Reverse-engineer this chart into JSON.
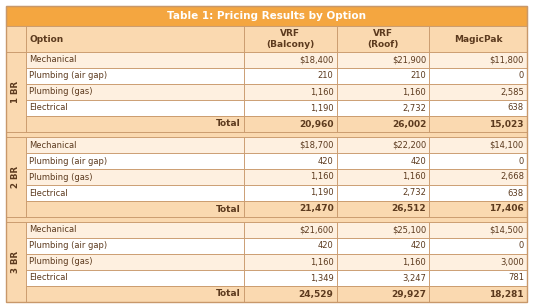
{
  "title": "Table 1: Pricing Results by Option",
  "col_headers": [
    "Option",
    "VRF\n(Balcony)",
    "VRF\n(Roof)",
    "MagicPak"
  ],
  "sections": [
    {
      "label": "1 BR",
      "rows": [
        [
          "Mechanical",
          "$18,400",
          "$21,900",
          "$11,800"
        ],
        [
          "Plumbing (air gap)",
          "210",
          "210",
          "0"
        ],
        [
          "Plumbing (gas)",
          "1,160",
          "1,160",
          "2,585"
        ],
        [
          "Electrical",
          "1,190",
          "2,732",
          "638"
        ]
      ],
      "total": [
        "20,960",
        "26,002",
        "15,023"
      ]
    },
    {
      "label": "2 BR",
      "rows": [
        [
          "Mechanical",
          "$18,700",
          "$22,200",
          "$14,100"
        ],
        [
          "Plumbing (air gap)",
          "420",
          "420",
          "0"
        ],
        [
          "Plumbing (gas)",
          "1,160",
          "1,160",
          "2,668"
        ],
        [
          "Electrical",
          "1,190",
          "2,732",
          "638"
        ]
      ],
      "total": [
        "21,470",
        "26,512",
        "17,406"
      ]
    },
    {
      "label": "3 BR",
      "rows": [
        [
          "Mechanical",
          "$21,600",
          "$25,100",
          "$14,500"
        ],
        [
          "Plumbing (air gap)",
          "420",
          "420",
          "0"
        ],
        [
          "Plumbing (gas)",
          "1,160",
          "1,160",
          "3,000"
        ],
        [
          "Electrical",
          "1,349",
          "3,247",
          "781"
        ]
      ],
      "total": [
        "24,529",
        "29,927",
        "18,281"
      ]
    }
  ],
  "title_bg": "#F4A640",
  "header_bg": "#FAD9B0",
  "row_bg_light": "#FEF0E0",
  "row_bg_white": "#FFFFFF",
  "total_bg": "#FAD9B0",
  "sep_bg": "#FAD9B0",
  "border_color": "#C8986A",
  "title_text_color": "#FFFFFF",
  "header_text_color": "#5C3A1E",
  "cell_text_color": "#5C3A1E",
  "total_text_color": "#5C3A1E",
  "label_text_color": "#5C3A1E",
  "fig_w": 5.33,
  "fig_h": 3.07,
  "dpi": 100
}
